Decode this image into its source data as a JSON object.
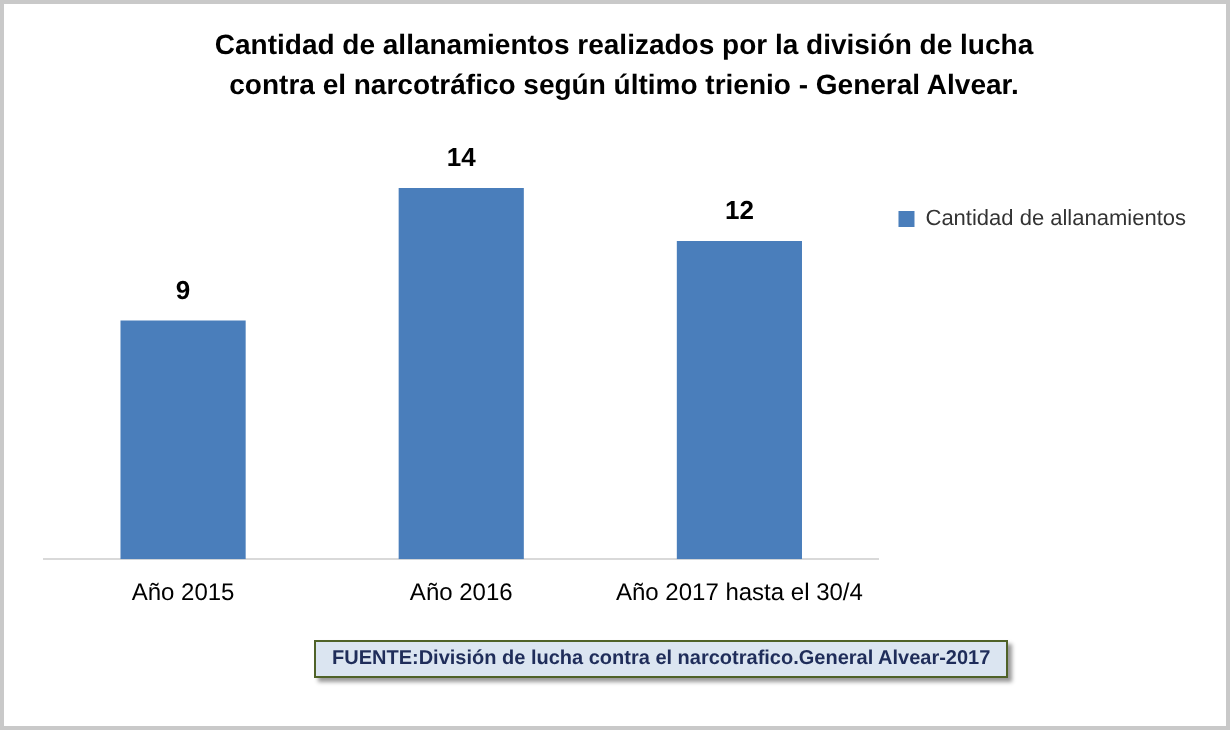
{
  "chart_data": {
    "type": "bar",
    "title": "Cantidad de allanamientos realizados  por la división de lucha contra el narcotráfico según último trienio - General Alvear.",
    "categories": [
      "Año 2015",
      "Año 2016",
      "Año 2017 hasta el 30/4"
    ],
    "series": [
      {
        "name": "Cantidad de allanamientos",
        "color": "#4a7ebb",
        "values": [
          9,
          14,
          12
        ]
      }
    ],
    "data_labels": true,
    "legend": "top right",
    "grid": false,
    "annotations": [
      "FUENTE:División de lucha contra el narcotrafico.General Alvear-2017"
    ]
  }
}
